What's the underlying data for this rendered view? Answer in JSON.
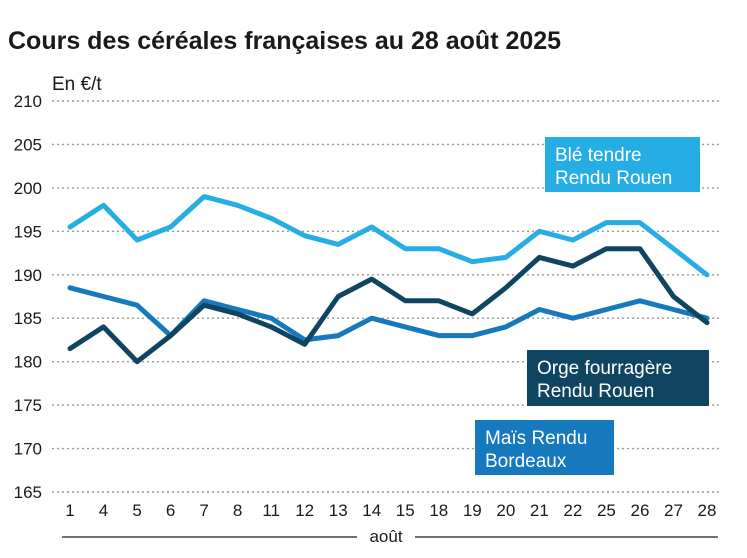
{
  "title": "Cours des céréales françaises au 28 août 2025",
  "chart_data": {
    "type": "line",
    "title": "Cours des céréales françaises au 28 août 2025",
    "ylabel": "En €/t",
    "xlabel": "août",
    "ylim": [
      165,
      210
    ],
    "yticks": [
      165,
      170,
      175,
      180,
      185,
      190,
      195,
      200,
      205,
      210
    ],
    "grid": true,
    "categories": [
      "1",
      "4",
      "5",
      "6",
      "7",
      "8",
      "11",
      "12",
      "13",
      "14",
      "15",
      "18",
      "19",
      "20",
      "21",
      "22",
      "25",
      "26",
      "27",
      "28"
    ],
    "series": [
      {
        "name": "Blé tendre Rendu Rouen",
        "legend_lines": [
          "Blé tendre",
          "Rendu Rouen"
        ],
        "color": "#26aee4",
        "values": [
          195.5,
          198,
          194,
          195.5,
          199,
          198,
          196.5,
          194.5,
          193.5,
          195.5,
          193,
          193,
          191.5,
          192,
          195,
          194,
          196,
          196,
          193,
          190
        ]
      },
      {
        "name": "Orge fourragère Rendu Rouen",
        "legend_lines": [
          "Orge fourragère",
          "Rendu Rouen"
        ],
        "color": "#0f4560",
        "values": [
          181.5,
          184,
          180,
          183,
          186.5,
          185.5,
          184,
          182,
          187.5,
          189.5,
          187,
          187,
          185.5,
          188.5,
          192,
          191,
          193,
          193,
          187.5,
          184.5
        ]
      },
      {
        "name": "Maïs Rendu Bordeaux",
        "legend_lines": [
          "Maïs Rendu",
          "Bordeaux"
        ],
        "color": "#1678bd",
        "values": [
          188.5,
          187.5,
          186.5,
          183,
          187,
          186,
          185,
          182.5,
          183,
          185,
          184,
          183,
          183,
          184,
          186,
          185,
          186,
          187,
          186,
          185
        ]
      }
    ]
  }
}
